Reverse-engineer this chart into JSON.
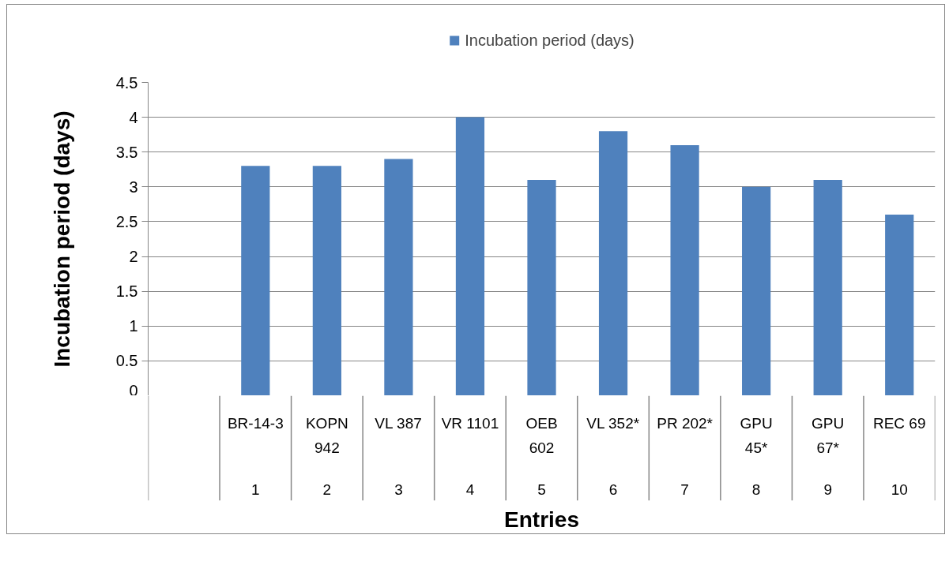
{
  "chart_data": {
    "type": "bar",
    "categories": [
      null,
      "BR-14-3\n1",
      "KOPN\n942\n2",
      "VL 387\n3",
      "VR 1101\n4",
      "OEB\n602\n5",
      "VL 352*\n6",
      "PR 202*\n7",
      "GPU\n45*\n8",
      "GPU\n67*\n9",
      "REC 69\n10"
    ],
    "series": [
      {
        "name": "Incubation period (days)",
        "color": "#4f81bd",
        "values": [
          null,
          3.3,
          3.3,
          3.4,
          4.0,
          3.1,
          3.8,
          3.6,
          3.0,
          3.1,
          2.6
        ]
      }
    ],
    "xlabel": "Entries",
    "ylabel": "Incubation period (days)",
    "ylim": [
      0,
      4.5
    ],
    "yticks": [
      0,
      0.5,
      1,
      1.5,
      2,
      2.5,
      3,
      3.5,
      4,
      4.5
    ],
    "grid": "y",
    "legend": "top"
  }
}
